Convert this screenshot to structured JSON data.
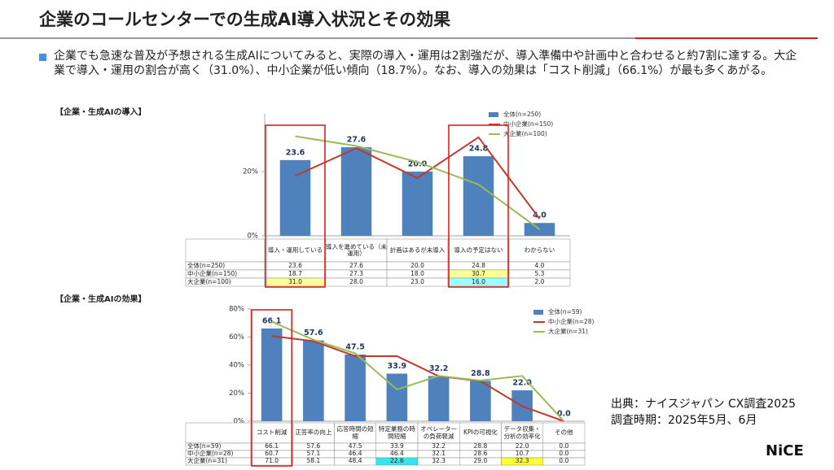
{
  "slide": {
    "title": "企業のコールセンターでの生成AI導入状況とその効果",
    "bullet": "企業でも急速な普及が予想される生成AIについてみると、実際の導入・運用は2割強だが、導入準備中や計画中と合わせると約7割に達する。大企業で導入・運用の割合が高く（31.0%）、中小企業が低い傾向（18.7%）。なお、導入の効果は「コスト削減」（66.1%）が最も多くあがる。",
    "source": "出典：ナイスジャパン CX調査2025",
    "period": "調査時期：2025年5月、6月",
    "logo": "NiCE"
  },
  "chart_data": [
    {
      "type": "bar",
      "title": "【企業・生成AIの導入】",
      "categories": [
        "導入・運用している",
        "導入を進めている（未運用）",
        "計画はあるが未導入",
        "導入の予定はない",
        "わからない"
      ],
      "series": [
        {
          "name": "全体(n=250)",
          "type": "bar",
          "color": "#4f81bd",
          "values": [
            23.6,
            27.6,
            20.0,
            24.8,
            4.0
          ],
          "value_labels": [
            "23.6",
            "27.6",
            "20.0",
            "24.8",
            "4.0"
          ],
          "highlight": [
            null,
            null,
            null,
            null,
            null
          ]
        },
        {
          "name": "中小企業(n=150)",
          "type": "line",
          "color": "#c0392b",
          "values": [
            18.7,
            27.3,
            18.0,
            30.7,
            5.3
          ],
          "value_labels": [
            "18.7",
            "27.3",
            "18.0",
            "30.7",
            "5.3"
          ],
          "highlight": [
            null,
            null,
            null,
            "#ffff99",
            null
          ]
        },
        {
          "name": "大企業(n=100)",
          "type": "line",
          "color": "#9bbb59",
          "values": [
            31.0,
            28.0,
            23.0,
            16.0,
            2.0
          ],
          "value_labels": [
            "31.0",
            "28.0",
            "23.0",
            "16.0",
            "2.0"
          ],
          "highlight": [
            "#ffff99",
            null,
            null,
            "#99ffff",
            null
          ]
        }
      ],
      "ylim": [
        0,
        38
      ],
      "yticks": [
        {
          "value": 0,
          "label": "0%"
        },
        {
          "value": 20,
          "label": "20%"
        }
      ],
      "grid": false,
      "legend": "upper right",
      "boxed": [
        true,
        false,
        false,
        true,
        false
      ],
      "box_color": "#e02020"
    },
    {
      "type": "bar",
      "title": "【企業・生成AIの効果】",
      "categories": [
        "コスト削減",
        "正答率の向上",
        "応答時間の短縮",
        "特定業務の時間短縮",
        "オペレーターの負荷軽減",
        "KPIの可視化",
        "データ収集・分析の効率化",
        "その他"
      ],
      "series": [
        {
          "name": "全体(n=59)",
          "type": "bar",
          "color": "#4f81bd",
          "values": [
            66.1,
            57.6,
            47.5,
            33.9,
            32.2,
            28.8,
            22.0,
            0.0
          ],
          "value_labels": [
            "66.1",
            "57.6",
            "47.5",
            "33.9",
            "32.2",
            "28.8",
            "22.0",
            "0.0"
          ],
          "highlight": [
            null,
            null,
            null,
            null,
            null,
            null,
            null,
            null
          ]
        },
        {
          "name": "中小企業(n=28)",
          "type": "line",
          "color": "#c0392b",
          "values": [
            60.7,
            57.1,
            46.4,
            46.4,
            32.1,
            28.6,
            10.7,
            0.0
          ],
          "value_labels": [
            "60.7",
            "57.1",
            "46.4",
            "46.4",
            "32.1",
            "28.6",
            "10.7",
            "0.0"
          ],
          "highlight": [
            null,
            null,
            null,
            null,
            null,
            null,
            null,
            null
          ]
        },
        {
          "name": "大企業(n=31)",
          "type": "line",
          "color": "#9bbb59",
          "values": [
            71.0,
            58.1,
            48.4,
            22.6,
            32.3,
            29.0,
            32.3,
            0.0
          ],
          "value_labels": [
            "71.0",
            "58.1",
            "48.4",
            "22.6",
            "32.3",
            "29.0",
            "32.3",
            "0.0"
          ],
          "highlight": [
            null,
            null,
            null,
            "#33e6f0",
            null,
            null,
            "#ffff33",
            null
          ]
        }
      ],
      "ylim": [
        0,
        80
      ],
      "yticks": [
        {
          "value": 0,
          "label": "0%"
        },
        {
          "value": 20,
          "label": "20%"
        },
        {
          "value": 40,
          "label": "40%"
        },
        {
          "value": 60,
          "label": "60%"
        },
        {
          "value": 80,
          "label": "80%"
        }
      ],
      "grid": false,
      "legend": "upper right",
      "boxed": [
        true,
        false,
        false,
        false,
        false,
        false,
        false,
        false
      ],
      "box_color": "#e02020"
    }
  ]
}
